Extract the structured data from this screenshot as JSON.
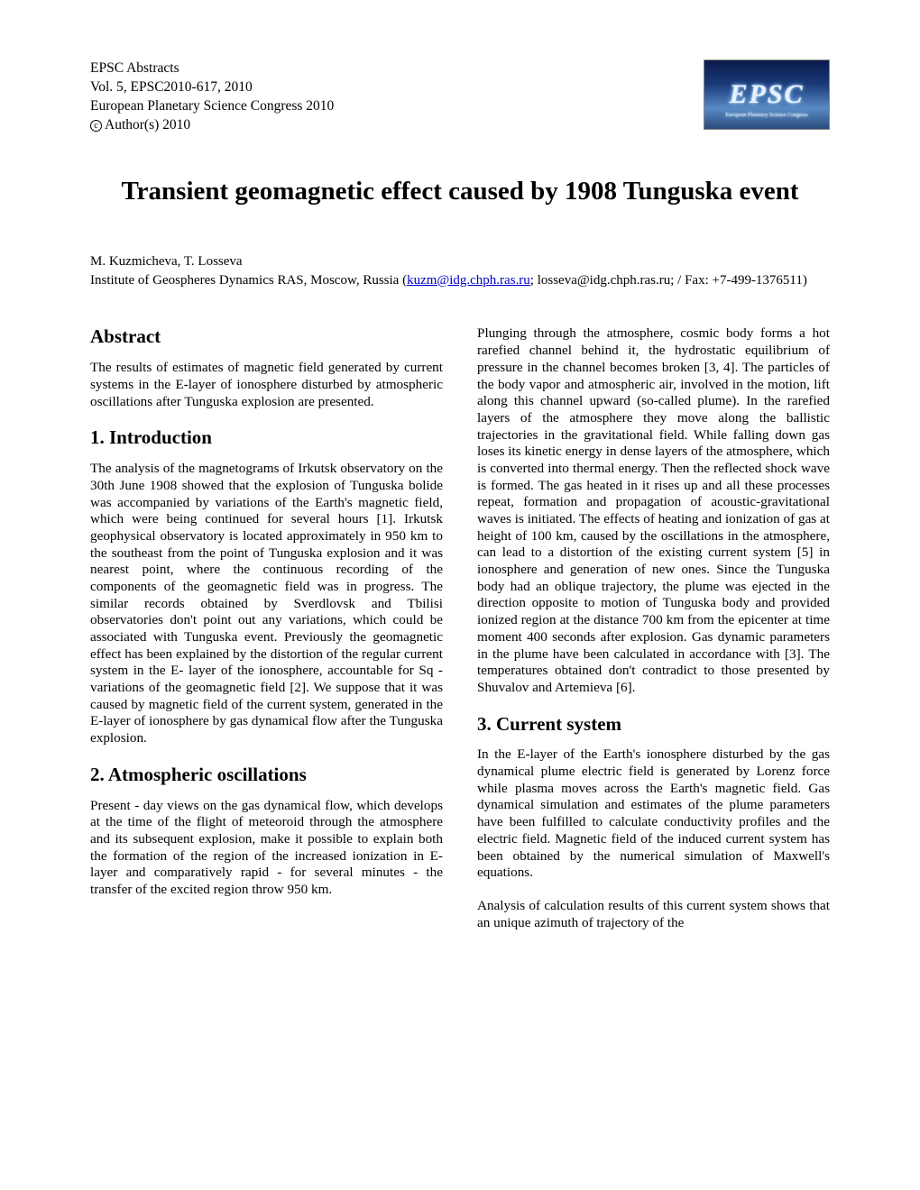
{
  "header": {
    "line1": "EPSC Abstracts",
    "line2": "Vol. 5, EPSC2010-617, 2010",
    "line3": "European Planetary Science Congress 2010",
    "copyright_symbol": "c",
    "line4_suffix": " Author(s) 2010",
    "logo_text": "EPSC",
    "logo_sub": "European Planetary Science Congress"
  },
  "title": "Transient geomagnetic effect caused by 1908 Tunguska event",
  "authors": "M. Kuzmicheva, T. Losseva",
  "affiliation_prefix": "Institute of Geospheres Dynamics RAS, Moscow, Russia (",
  "email_link": "kuzm@idg.chph.ras.ru",
  "affiliation_suffix": "; losseva@idg.chph.ras.ru; / Fax: +7-499-1376511)",
  "sections": {
    "abstract_heading": "Abstract",
    "abstract_body": "The results of estimates of magnetic field generated by current systems in the E-layer of ionosphere disturbed by atmospheric oscillations after Tunguska explosion are presented.",
    "intro_heading": "1. Introduction",
    "intro_body": "The analysis of the magnetograms of Irkutsk observatory on the 30th June 1908 showed that the explosion of Tunguska bolide was accompanied by variations of the Earth's magnetic field, which were being continued for several hours [1]. Irkutsk geophysical observatory is located approximately in 950 km to the southeast from the point of Tunguska explosion and it was nearest point, where the continuous recording of the components of the geomagnetic field was in progress. The similar records obtained by Sverdlovsk and Tbilisi observatories don't point out any variations, which could be associated with Tunguska event. Previously the geomagnetic effect has been explained by the distortion of the regular current system in the E- layer of the ionosphere, accountable for Sq -variations of the geomagnetic field [2]. We suppose that it was caused by magnetic field of the current system, generated in the E-layer of ionosphere by gas dynamical flow after the Tunguska explosion.",
    "osc_heading": "2. Atmospheric oscillations",
    "osc_body1": "Present - day views on the gas dynamical flow, which develops at the time of the flight of meteoroid through the atmosphere and its subsequent explosion, make it possible to explain both the formation of the region of the increased ionization in E- layer and comparatively rapid - for several minutes - the transfer of the excited region throw 950 km.",
    "osc_body2": "Plunging through the atmosphere, cosmic body forms a hot rarefied channel behind it, the hydrostatic equilibrium of pressure in the channel becomes broken [3, 4]. The particles of the body vapor and atmospheric air, involved in the motion, lift along this channel upward (so-called plume). In the rarefied layers of the atmosphere they move along the ballistic trajectories in the gravitational field. While falling down gas loses its kinetic energy in dense layers of the atmosphere, which is converted into thermal energy. Then the reflected shock wave is formed. The gas heated in it rises up and all these processes repeat, formation and propagation of acoustic-gravitational waves is initiated. The effects of heating and ionization of gas at height of 100 km, caused by the oscillations in the atmosphere, can lead to a distortion of the existing current system [5] in ionosphere and generation of new ones. Since the Tunguska body had an oblique trajectory, the plume was ejected in the direction opposite to motion of Tunguska body and provided ionized region at the distance 700 km from the epicenter at time moment 400 seconds after explosion. Gas dynamic parameters in the plume have been calculated in accordance with [3]. The temperatures obtained don't contradict to those presented by Shuvalov and Artemieva [6].",
    "current_heading": "3. Current system",
    "current_body1": "In the E-layer of the Earth's ionosphere disturbed by the gas dynamical plume electric field is generated by Lorenz force while plasma moves across the Earth's magnetic field. Gas dynamical simulation and estimates of the plume parameters have been fulfilled to calculate conductivity profiles and the electric field. Magnetic field of the induced current system has been obtained by the numerical simulation of Maxwell's equations.",
    "current_body2": "Analysis of calculation results of this current system shows that an unique azimuth of trajectory of the"
  },
  "colors": {
    "text": "#000000",
    "link": "#0000cc",
    "background": "#ffffff"
  },
  "fonts": {
    "body_family": "Times New Roman",
    "body_size_pt": 11,
    "title_size_pt": 22,
    "heading_size_pt": 16
  }
}
